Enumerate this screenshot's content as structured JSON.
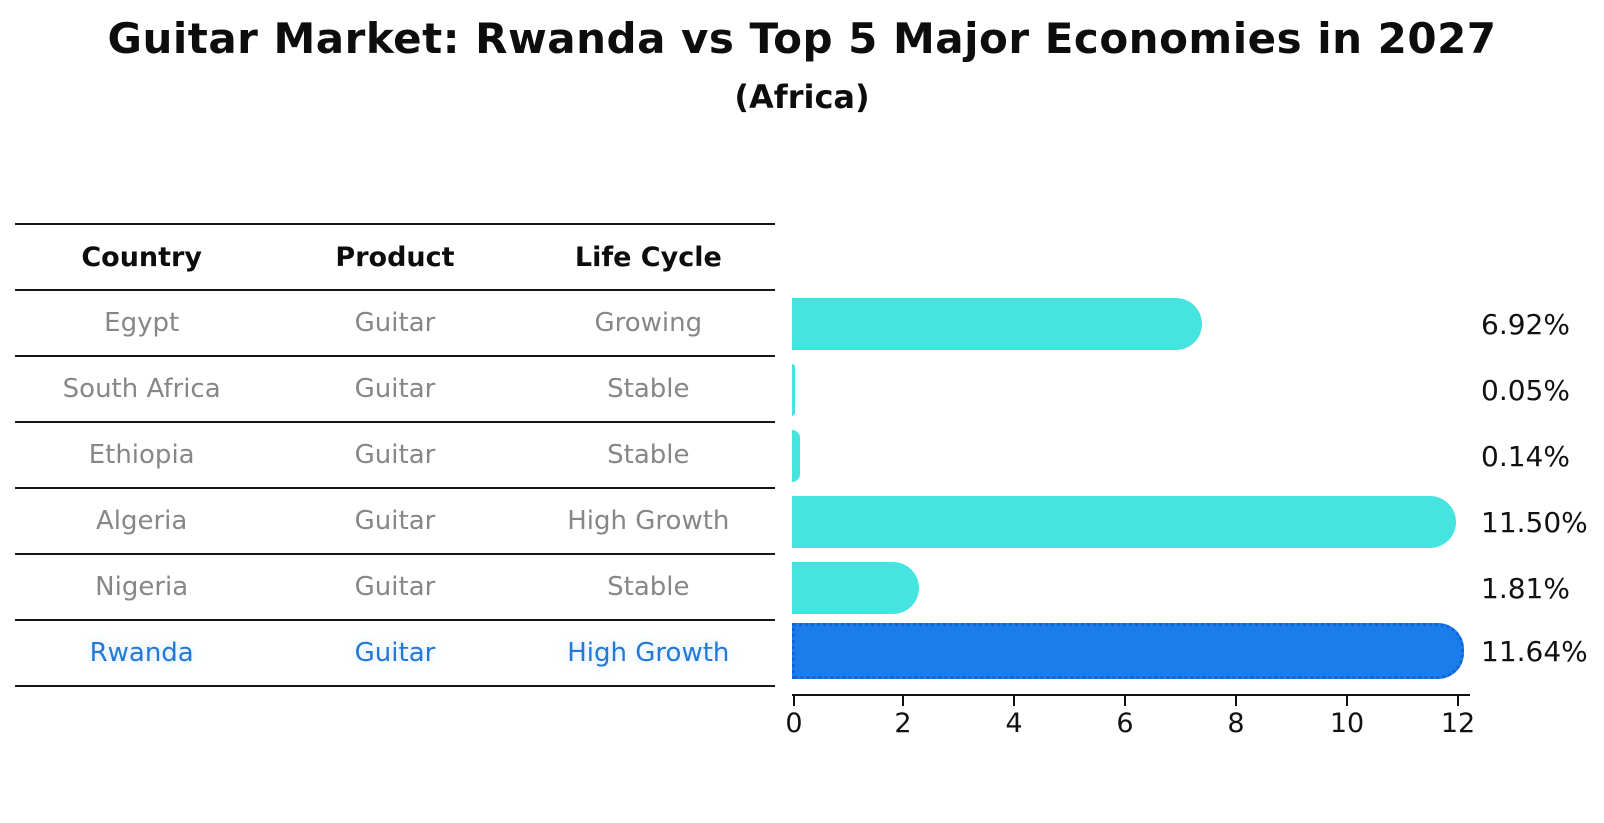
{
  "figure": {
    "title": "Guitar Market: Rwanda vs Top 5 Major Economies in 2027",
    "subtitle": "(Africa)"
  },
  "table": {
    "headers": [
      "Country",
      "Product",
      "Life Cycle"
    ],
    "rows": [
      [
        "Egypt",
        "Guitar",
        "Growing"
      ],
      [
        "South Africa",
        "Guitar",
        "Stable"
      ],
      [
        "Ethiopia",
        "Guitar",
        "Stable"
      ],
      [
        "Algeria",
        "Guitar",
        "High Growth"
      ],
      [
        "Nigeria",
        "Guitar",
        "Stable"
      ],
      [
        "Rwanda",
        "Guitar",
        "High Growth"
      ]
    ],
    "highlight_row_index": 5,
    "highlight_text_color": "#2478D6"
  },
  "chart_data": {
    "type": "bar",
    "orientation": "horizontal",
    "title": "Guitar Market: Rwanda vs Top 5 Major Economies in 2027",
    "subtitle": "(Africa)",
    "categories": [
      "Egypt",
      "South Africa",
      "Ethiopia",
      "Algeria",
      "Nigeria",
      "Rwanda"
    ],
    "values": [
      6.92,
      0.05,
      0.14,
      11.5,
      1.81,
      11.64
    ],
    "value_labels": [
      "6.92%",
      "0.05%",
      "0.14%",
      "11.50%",
      "1.81%",
      "11.64%"
    ],
    "xlabel": "",
    "ylabel": "",
    "xlim": [
      0,
      12
    ],
    "x_ticks": [
      0,
      2,
      4,
      6,
      8,
      10,
      12
    ],
    "x_tick_labels": [
      "0",
      "2",
      "4",
      "6",
      "8",
      "10",
      "12"
    ],
    "grid": false,
    "legend_position": "none",
    "bar_color": "#45E4E1",
    "highlight_bar_color": "#1B7CEC",
    "highlight_border_color": "#0F65D6",
    "highlight_index": 5
  }
}
